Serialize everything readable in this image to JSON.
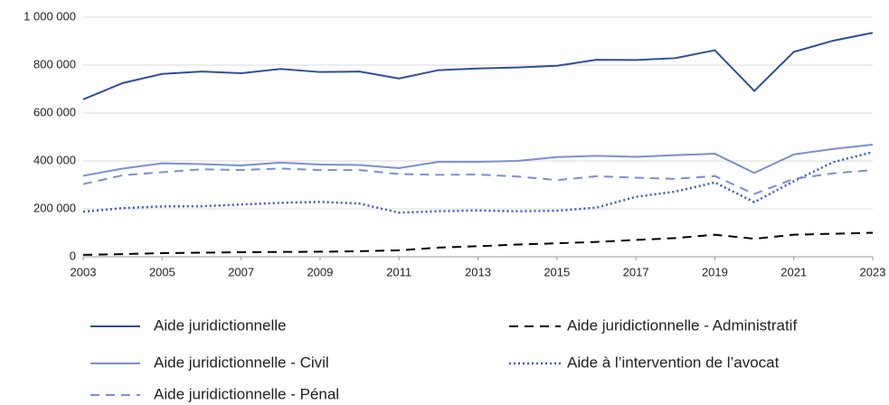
{
  "chart_data": {
    "type": "line",
    "x": [
      2003,
      2004,
      2005,
      2006,
      2007,
      2008,
      2009,
      2010,
      2011,
      2012,
      2013,
      2014,
      2015,
      2016,
      2017,
      2018,
      2019,
      2020,
      2021,
      2022,
      2023
    ],
    "xlim": [
      2003,
      2023
    ],
    "xticks": [
      2003,
      2005,
      2007,
      2009,
      2011,
      2013,
      2015,
      2017,
      2019,
      2021,
      2023
    ],
    "ylim": [
      0,
      1000000
    ],
    "yticks": [
      {
        "value": 0,
        "label": "0"
      },
      {
        "value": 200000,
        "label": "200 000"
      },
      {
        "value": 400000,
        "label": "400 000"
      },
      {
        "value": 600000,
        "label": "600 000"
      },
      {
        "value": 800000,
        "label": "800 000"
      },
      {
        "value": 1000000,
        "label": "1 000 000"
      }
    ],
    "grid": true,
    "series": [
      {
        "name": "Aide juridictionnelle",
        "color": "#2e4f9a",
        "dash": "solid",
        "values": [
          657000,
          725000,
          763000,
          773000,
          766000,
          784000,
          771000,
          773000,
          744000,
          779000,
          786000,
          790000,
          797000,
          822000,
          821000,
          829000,
          862000,
          692000,
          855000,
          902000,
          935000
        ]
      },
      {
        "name": "Aide juridictionnelle - Administratif",
        "color": "#000000",
        "dash": "dashed",
        "values": [
          8000,
          11000,
          15000,
          17000,
          19000,
          20000,
          21000,
          23000,
          27000,
          38000,
          44000,
          51000,
          56000,
          62000,
          70000,
          78000,
          92000,
          75000,
          92000,
          96000,
          100000
        ]
      },
      {
        "name": "Aide juridictionnelle - Civil",
        "color": "#7a8fd0",
        "dash": "solid",
        "values": [
          338000,
          368000,
          390000,
          387000,
          381000,
          393000,
          385000,
          383000,
          370000,
          396000,
          396000,
          400000,
          416000,
          421000,
          417000,
          424000,
          430000,
          350000,
          427000,
          450000,
          468000
        ]
      },
      {
        "name": "Aide à l’intervention de l’avocat",
        "color": "#3a5bc0",
        "dash": "dotted",
        "values": [
          188000,
          203000,
          210000,
          211000,
          218000,
          225000,
          229000,
          222000,
          184000,
          190000,
          193000,
          190000,
          192000,
          205000,
          250000,
          272000,
          310000,
          228000,
          315000,
          395000,
          437000
        ]
      },
      {
        "name": "Aide juridictionnelle - Pénal",
        "color": "#7a8fd0",
        "dash": "dashed",
        "values": [
          303000,
          340000,
          353000,
          365000,
          362000,
          368000,
          362000,
          362000,
          345000,
          342000,
          343000,
          335000,
          320000,
          336000,
          330000,
          325000,
          337000,
          262000,
          325000,
          348000,
          362000
        ]
      }
    ]
  }
}
